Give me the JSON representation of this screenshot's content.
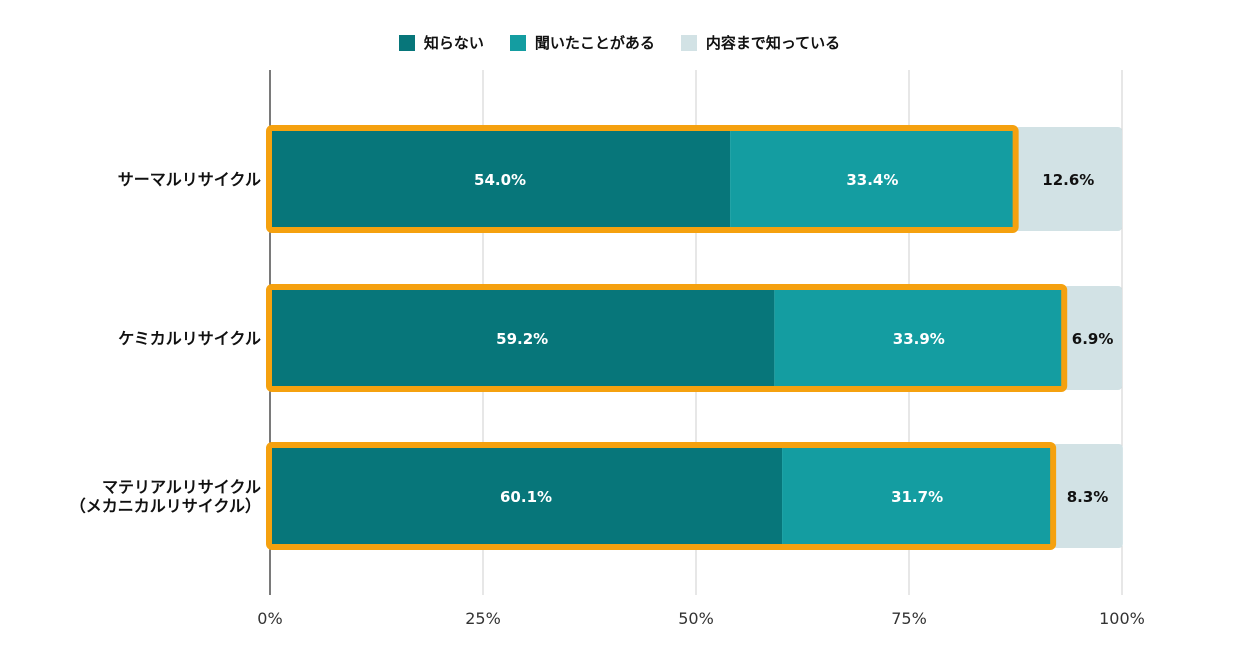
{
  "chart_data": {
    "type": "bar",
    "orientation": "horizontal",
    "stacked": "percent",
    "categories": [
      "サーマルリサイクル",
      "ケミカルリサイクル",
      "マテリアルリサイクル\n（メカニカルリサイクル）"
    ],
    "series": [
      {
        "name": "知らない",
        "values": [
          54.0,
          59.2,
          60.1
        ],
        "labels": [
          "54.0%",
          "59.2%",
          "60.1%"
        ],
        "color": "#07767a"
      },
      {
        "name": "聞いたことがある",
        "values": [
          33.4,
          33.9,
          31.7
        ],
        "labels": [
          "33.4%",
          "33.9%",
          "31.7%"
        ],
        "color": "#149da1"
      },
      {
        "name": "内容まで知っている",
        "values": [
          12.6,
          6.9,
          8.3
        ],
        "labels": [
          "12.6%",
          "6.9%",
          "8.3%"
        ],
        "color": "#d2e2e5"
      }
    ],
    "xlim": [
      0,
      100
    ],
    "x_ticks": [
      "0%",
      "25%",
      "50%",
      "75%",
      "100%"
    ],
    "grid": true,
    "legend_position": "top",
    "highlight_color": "#f5a10f"
  }
}
